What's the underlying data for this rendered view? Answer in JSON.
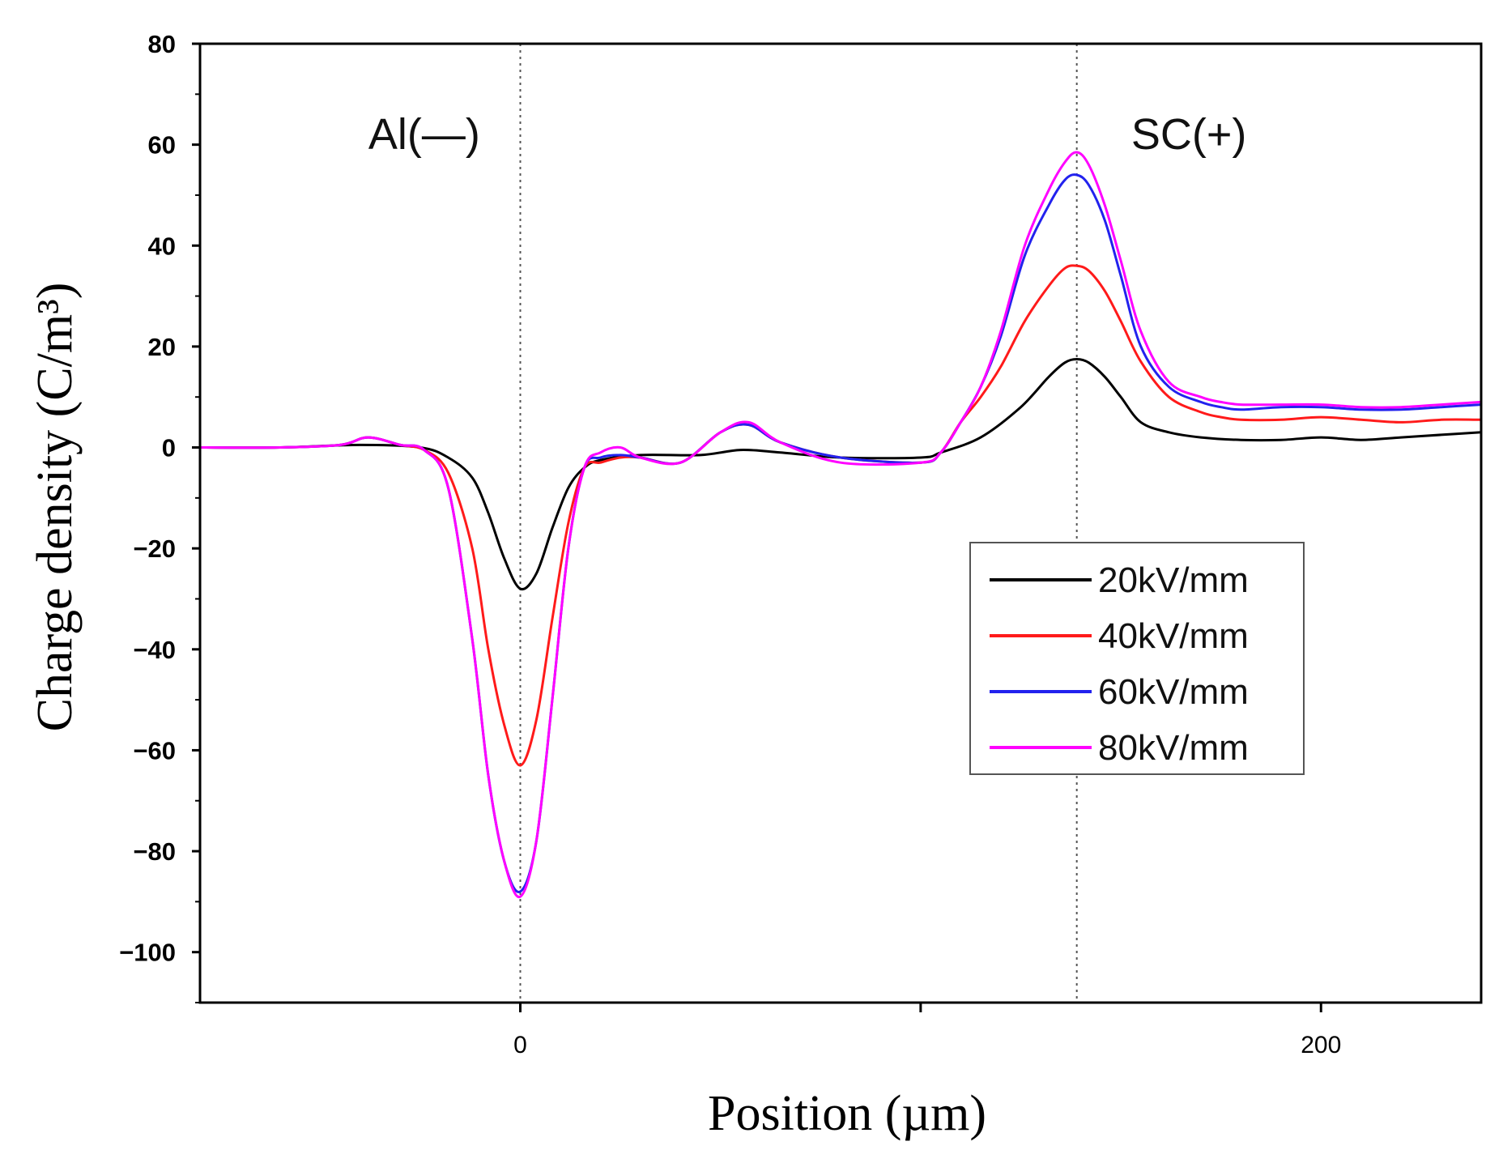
{
  "chart_data": {
    "type": "line",
    "title": "",
    "xlabel": "Position (µm)",
    "ylabel": "Charge density (C/m³)",
    "xlim": [
      -80,
      240
    ],
    "ylim": [
      -110,
      80
    ],
    "x_ticks": [
      0,
      100,
      200
    ],
    "x_tick_labels": [
      "0",
      "",
      "200"
    ],
    "y_ticks": [
      80,
      60,
      40,
      20,
      0,
      -20,
      -40,
      -60,
      -80,
      -100
    ],
    "y_tick_labels": [
      "80",
      "60",
      "40",
      "20",
      "0",
      "−20",
      "−40",
      "−60",
      "−80",
      "−100"
    ],
    "grid": false,
    "legend_position": "center-right",
    "reference_lines": [
      {
        "x": 0,
        "style": "dotted"
      },
      {
        "x": 139,
        "style": "dotted"
      }
    ],
    "annotations": [
      {
        "text": "Al(—)",
        "x": -24,
        "y": 62
      },
      {
        "text": "SC(+)",
        "x": 167,
        "y": 62
      }
    ],
    "series": [
      {
        "name": "20kV/mm",
        "color": "#000000",
        "x": [
          -80,
          -60,
          -40,
          -25,
          -18,
          -12,
          -8,
          -4,
          0,
          4,
          8,
          12,
          16,
          20,
          30,
          45,
          55,
          65,
          80,
          100,
          105,
          115,
          125,
          132,
          136,
          139,
          142,
          146,
          150,
          155,
          162,
          170,
          180,
          190,
          200,
          210,
          220,
          230,
          240
        ],
        "values": [
          0,
          0,
          0.5,
          0,
          -2,
          -6,
          -13,
          -22,
          -28,
          -25,
          -16,
          -8,
          -4,
          -2.5,
          -1.5,
          -1.5,
          -0.5,
          -1,
          -2,
          -2,
          -1,
          2,
          8,
          14,
          16.8,
          17.5,
          16.8,
          14,
          10,
          5,
          3,
          2,
          1.5,
          1.5,
          2,
          1.5,
          2,
          2.5,
          3
        ]
      },
      {
        "name": "40kV/mm",
        "color": "#ff1a1a",
        "x": [
          -80,
          -60,
          -45,
          -38,
          -30,
          -24,
          -18,
          -12,
          -8,
          -4,
          0,
          4,
          8,
          12,
          16,
          20,
          25,
          30,
          40,
          50,
          57,
          65,
          80,
          100,
          105,
          110,
          115,
          120,
          126,
          132,
          136,
          139,
          142,
          146,
          150,
          155,
          162,
          170,
          175,
          180,
          190,
          200,
          210,
          220,
          230,
          240
        ],
        "values": [
          0,
          0,
          0.5,
          2,
          0.5,
          -0.5,
          -5,
          -20,
          -40,
          -55,
          -63,
          -54,
          -34,
          -15,
          -4,
          -3,
          -2,
          -2,
          -3,
          3,
          4.5,
          1,
          -2,
          -3,
          -1,
          5,
          10,
          16,
          25,
          32,
          35.5,
          36,
          35,
          31,
          25,
          17,
          10,
          7,
          6,
          5.5,
          5.5,
          6,
          5.5,
          5,
          5.5,
          5.5
        ]
      },
      {
        "name": "60kV/mm",
        "color": "#2222ee",
        "x": [
          -80,
          -60,
          -45,
          -38,
          -30,
          -24,
          -18,
          -12,
          -8,
          -4,
          0,
          4,
          8,
          12,
          16,
          20,
          25,
          30,
          40,
          50,
          57,
          65,
          80,
          100,
          105,
          110,
          115,
          120,
          126,
          132,
          136,
          139,
          142,
          146,
          150,
          155,
          162,
          170,
          175,
          180,
          190,
          200,
          210,
          220,
          230,
          240
        ],
        "values": [
          0,
          0,
          0.5,
          2,
          0.5,
          -0.5,
          -8,
          -38,
          -65,
          -82,
          -88,
          -78,
          -50,
          -20,
          -4,
          -2,
          -1.5,
          -2,
          -3,
          3,
          4.5,
          1,
          -2,
          -3,
          -1,
          5,
          12,
          22,
          38,
          48,
          53,
          54,
          52,
          45,
          34,
          20,
          12,
          9,
          8,
          7.5,
          8,
          8,
          7.5,
          7.5,
          8,
          8.5
        ]
      },
      {
        "name": "80kV/mm",
        "color": "#ff00ff",
        "x": [
          -80,
          -60,
          -45,
          -38,
          -30,
          -24,
          -18,
          -12,
          -8,
          -4,
          0,
          4,
          8,
          12,
          16,
          20,
          25,
          30,
          40,
          50,
          57,
          65,
          80,
          100,
          105,
          110,
          115,
          120,
          126,
          132,
          136,
          139,
          142,
          146,
          150,
          155,
          162,
          170,
          175,
          180,
          190,
          200,
          210,
          220,
          230,
          240
        ],
        "values": [
          0,
          0,
          0.5,
          2,
          0.5,
          -0.5,
          -8,
          -38,
          -65,
          -82,
          -89,
          -78,
          -50,
          -20,
          -4,
          -1,
          0,
          -2,
          -3,
          3,
          5,
          1,
          -3,
          -3,
          -1,
          5,
          12,
          23,
          40,
          51,
          56.5,
          58.5,
          56,
          48,
          37,
          23,
          13,
          10,
          9,
          8.5,
          8.5,
          8.5,
          8,
          8,
          8.5,
          9
        ]
      }
    ]
  }
}
